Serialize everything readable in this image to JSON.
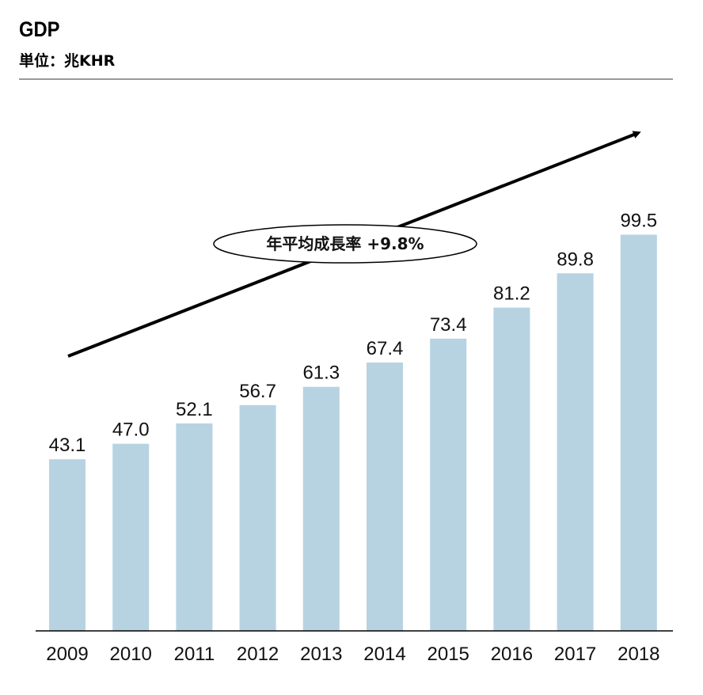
{
  "chart_data": {
    "type": "bar",
    "title": "GDP",
    "subtitle": "単位：兆KHR",
    "categories": [
      "2009",
      "2010",
      "2011",
      "2012",
      "2013",
      "2014",
      "2015",
      "2016",
      "2017",
      "2018"
    ],
    "values": [
      43.1,
      47.0,
      52.1,
      56.7,
      61.3,
      67.4,
      73.4,
      81.2,
      89.8,
      99.5
    ],
    "value_labels": [
      "43.1",
      "47.0",
      "52.1",
      "56.7",
      "61.3",
      "67.4",
      "73.4",
      "81.2",
      "89.8",
      "99.5"
    ],
    "annotation": "年平均成長率 +9.8%",
    "ylim": [
      0,
      100
    ],
    "grid": false,
    "legend": "none",
    "bar_color": "#b7d3e2"
  }
}
